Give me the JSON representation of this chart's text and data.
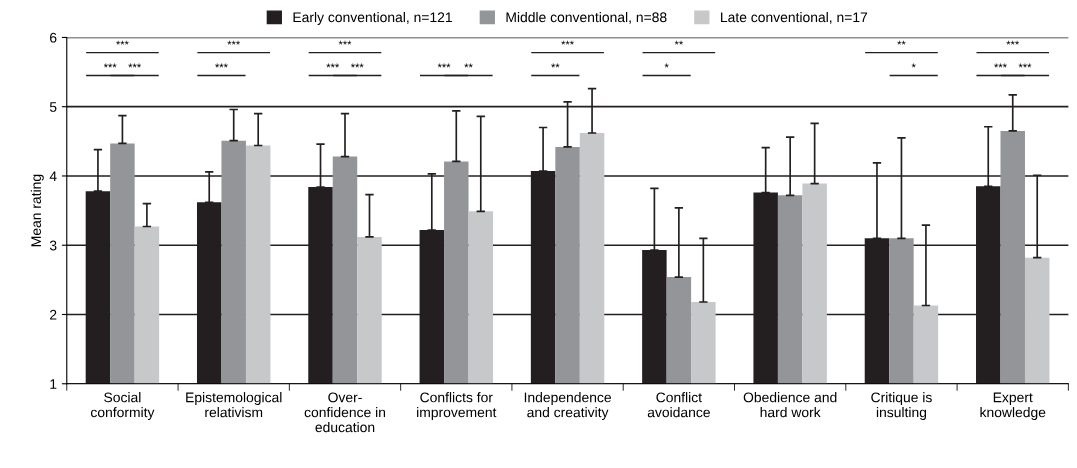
{
  "chart_data": {
    "type": "bar",
    "ylabel": "Mean rating",
    "categories": [
      "Social\nconformity",
      "Epistemological\nrelativism",
      "Over-\nconfidence in\neducation",
      "Conflicts for\nimprovement",
      "Independence\nand creativity",
      "Conflict\navoidance",
      "Obedience and\nhard work",
      "Critique is\ninsulting",
      "Expert\nknowledge"
    ],
    "series": [
      {
        "name": "Early conventional, n=121",
        "color": "#231f20",
        "values": [
          3.78,
          3.62,
          3.84,
          3.22,
          4.07,
          2.93,
          3.76,
          3.1,
          3.85
        ],
        "errors": [
          [
            3.78,
            4.38
          ],
          [
            3.62,
            4.06
          ],
          [
            3.84,
            4.46
          ],
          [
            3.22,
            4.03
          ],
          [
            4.07,
            4.7
          ],
          [
            2.93,
            3.82
          ],
          [
            3.76,
            4.41
          ],
          [
            3.1,
            4.19
          ],
          [
            3.85,
            4.71
          ]
        ]
      },
      {
        "name": "Middle conventional, n=88",
        "color": "#939598",
        "values": [
          4.47,
          4.51,
          4.28,
          4.21,
          4.42,
          2.54,
          3.72,
          3.1,
          4.65
        ],
        "errors": [
          [
            4.47,
            4.87
          ],
          [
            4.51,
            4.96
          ],
          [
            4.28,
            4.9
          ],
          [
            4.21,
            4.94
          ],
          [
            4.42,
            5.07
          ],
          [
            2.54,
            3.54
          ],
          [
            3.72,
            4.56
          ],
          [
            3.1,
            4.55
          ],
          [
            4.65,
            5.17
          ]
        ]
      },
      {
        "name": "Late conventional, n=17",
        "color": "#c7c8ca",
        "values": [
          3.27,
          4.44,
          3.12,
          3.49,
          4.62,
          2.18,
          3.89,
          2.13,
          2.82
        ],
        "errors": [
          [
            3.27,
            3.6
          ],
          [
            4.44,
            4.9
          ],
          [
            3.12,
            3.73
          ],
          [
            3.49,
            4.86
          ],
          [
            4.62,
            5.26
          ],
          [
            2.18,
            3.1
          ],
          [
            3.89,
            4.76
          ],
          [
            2.13,
            3.29
          ],
          [
            2.82,
            4.01
          ]
        ]
      }
    ],
    "ylim": [
      1,
      6
    ],
    "yticks": [
      1,
      2,
      3,
      4,
      5,
      6
    ],
    "grid": "y",
    "legend": "top",
    "annotations": [
      "***",
      "***",
      "***",
      "***",
      "***",
      "***",
      "***",
      "***",
      "***",
      "**",
      "***",
      "**",
      "**",
      "*",
      "**",
      "*",
      "***",
      "***",
      "***"
    ]
  }
}
